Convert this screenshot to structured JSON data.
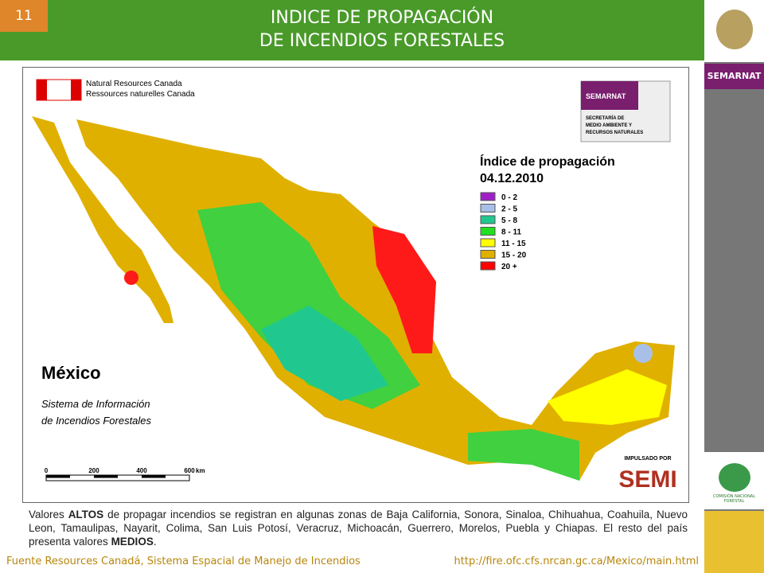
{
  "slide_number": "11",
  "title": [
    "INDICE DE PROPAGACIÓN",
    "DE INCENDIOS FORESTALES"
  ],
  "sidebar": {
    "semarnat": "SEMARNAT",
    "conafor": "COMISIÓN NACIONAL FORESTAL"
  },
  "map": {
    "agency": [
      "Natural Resources Canada",
      "Ressources naturelles Canada"
    ],
    "semarnat_logo": {
      "name": "SEMARNAT",
      "subtitle": [
        "SECRETARÍA DE",
        "MEDIO AMBIENTE Y",
        "RECURSOS NATURALES"
      ]
    },
    "legend": {
      "title": "Índice de propagación",
      "date": "04.12.2010",
      "items": [
        {
          "label": "0 - 2",
          "color": "#a020c8"
        },
        {
          "label": "2 - 5",
          "color": "#a8c0e8"
        },
        {
          "label": "5 - 8",
          "color": "#20c890"
        },
        {
          "label": "8 - 11",
          "color": "#20e020"
        },
        {
          "label": "11 - 15",
          "color": "#ffff00"
        },
        {
          "label": "15 - 20",
          "color": "#e0b000"
        },
        {
          "label": "20 +",
          "color": "#ff0000"
        }
      ]
    },
    "country": "México",
    "system": [
      "Sistema de Información",
      "de Incendios Forestales"
    ],
    "scale": {
      "ticks": [
        "0",
        "200",
        "400",
        "600"
      ],
      "unit": "km"
    },
    "badge": {
      "top": "IMPULSADO POR",
      "name": "SEMI"
    }
  },
  "paragraph": [
    "Valores ",
    "ALTOS",
    " de propagar incendios se registran en algunas zonas de  Baja California, Sonora, Sinaloa, Chihuahua, Coahuila, Nuevo Leon, Tamaulipas, Nayarit, Colima, San Luis Potosí, Veracruz, Michoacán, Guerrero, Morelos, Puebla y Chiapas. El resto del país presenta valores ",
    "MEDIOS",
    "."
  ],
  "footer": {
    "source": "Fuente Resources Canadá, Sistema Espacial de Manejo de Incendios",
    "url": "http://fire.ofc.cfs.nrcan.gc.ca/Mexico/main.html"
  }
}
